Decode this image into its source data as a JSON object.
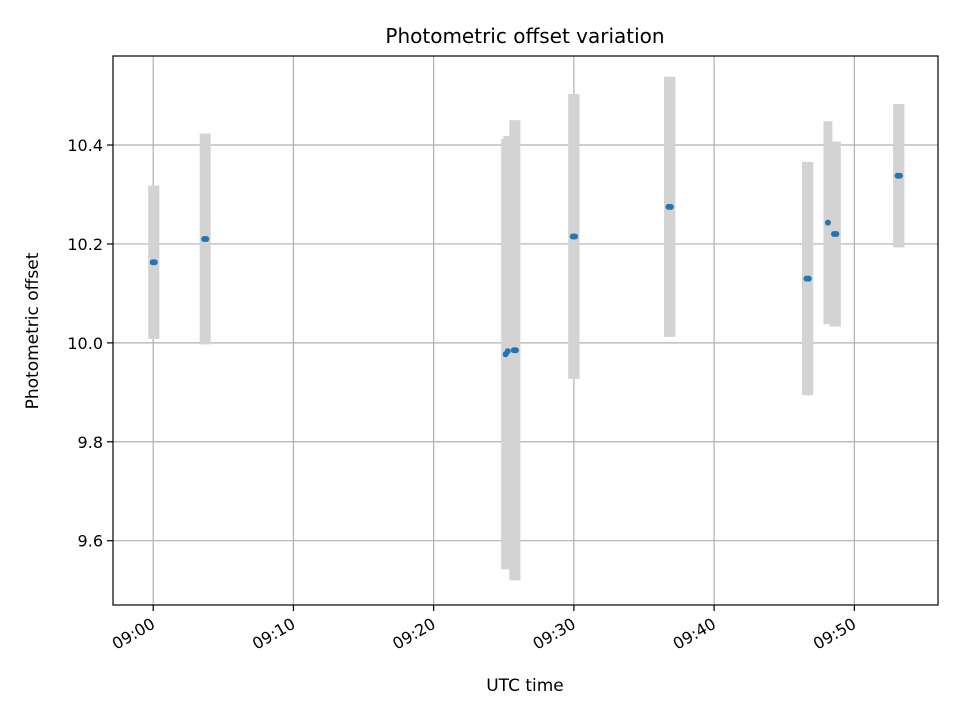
{
  "chart_data": {
    "type": "scatter",
    "title": "Photometric offset variation",
    "xlabel": "UTC time",
    "ylabel": "Photometric offset",
    "grid": true,
    "x_ticks": [
      "09:00",
      "09:10",
      "09:20",
      "09:30",
      "09:40",
      "09:50"
    ],
    "y_ticks": [
      "9.6",
      "9.8",
      "10.0",
      "10.2",
      "10.4"
    ],
    "xlim": [
      "08:57:08",
      "09:55:58"
    ],
    "ylim": [
      9.47,
      10.58
    ],
    "colors": {
      "marker": "#1f77b4",
      "errorbar": "#d3d3d3",
      "grid": "#b0b0b0"
    },
    "series": [
      {
        "points": [
          {
            "x": "08:59:58",
            "y": 10.163,
            "err": 0.155
          },
          {
            "x": "09:00:07",
            "y": 10.163,
            "err": 0.155
          },
          {
            "x": "09:03:38",
            "y": 10.21,
            "err": 0.213
          },
          {
            "x": "09:03:47",
            "y": 10.21,
            "err": 0.213
          },
          {
            "x": "09:25:08",
            "y": 9.977,
            "err": 0.435
          },
          {
            "x": "09:25:17",
            "y": 9.983,
            "err": 0.435
          },
          {
            "x": "09:25:43",
            "y": 9.985,
            "err": 0.465
          },
          {
            "x": "09:25:52",
            "y": 9.985,
            "err": 0.465
          },
          {
            "x": "09:29:55",
            "y": 10.215,
            "err": 0.288
          },
          {
            "x": "09:30:05",
            "y": 10.215,
            "err": 0.288
          },
          {
            "x": "09:36:45",
            "y": 10.275,
            "err": 0.263
          },
          {
            "x": "09:36:55",
            "y": 10.275,
            "err": 0.263
          },
          {
            "x": "09:46:35",
            "y": 10.13,
            "err": 0.236
          },
          {
            "x": "09:46:45",
            "y": 10.13,
            "err": 0.236
          },
          {
            "x": "09:48:07",
            "y": 10.243,
            "err": 0.205
          },
          {
            "x": "09:48:33",
            "y": 10.22,
            "err": 0.187
          },
          {
            "x": "09:48:43",
            "y": 10.22,
            "err": 0.187
          },
          {
            "x": "09:53:05",
            "y": 10.338,
            "err": 0.145
          },
          {
            "x": "09:53:15",
            "y": 10.338,
            "err": 0.145
          }
        ]
      }
    ]
  }
}
